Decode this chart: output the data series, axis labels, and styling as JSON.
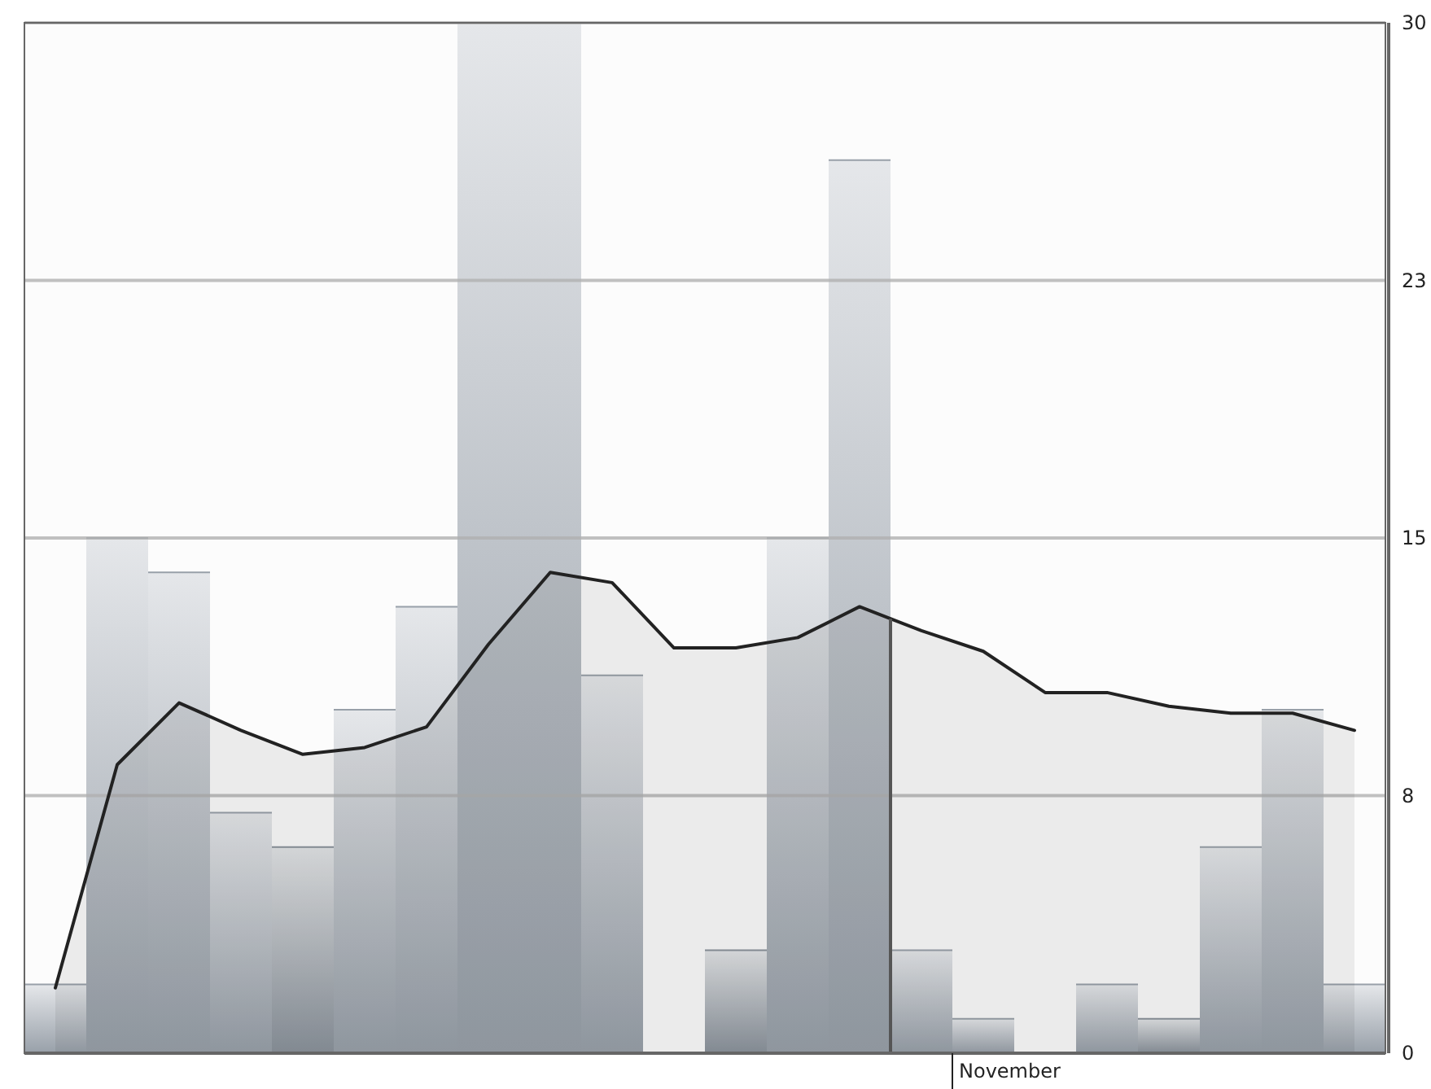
{
  "chart_data": {
    "type": "bar",
    "categories": [
      null,
      null,
      null,
      null,
      null,
      null,
      null,
      null,
      null,
      null,
      null,
      null,
      null,
      null,
      null,
      "November",
      null,
      null,
      null,
      null,
      null,
      null
    ],
    "series": [
      {
        "values": [
          2,
          15,
          14,
          7,
          6,
          10,
          13,
          30,
          30,
          11,
          0,
          3,
          15,
          26,
          3,
          1,
          0,
          2,
          1,
          6,
          10,
          2
        ],
        "colors": [
          "#98a0a9",
          "#98a0a9",
          "#98a0a9",
          "#98a0a9",
          "#8a929b",
          "#98a0a9",
          "#98a0a9",
          "#98a0a9",
          "#98a0a9",
          "#98a0a9",
          "#98a0a9",
          "#8a929b",
          "#98a0a9",
          "#98a0a9",
          "#98a0a9",
          "#98a0a9",
          "#98a0a9",
          "#98a0a9",
          "#8a929b",
          "#98a0a9",
          "#98a0a9",
          "#98a0a9"
        ]
      },
      {
        "type": "area",
        "color": "#222222",
        "values": [
          1.9,
          8.4,
          10.2,
          9.4,
          8.7,
          8.9,
          9.5,
          11.9,
          14.0,
          13.7,
          11.8,
          11.8,
          12.1,
          13.0,
          12.3,
          11.7,
          10.5,
          10.5,
          10.1,
          9.9,
          9.9,
          9.4
        ]
      }
    ],
    "ylim": [
      0,
      30
    ],
    "yticks": [
      0,
      {
        "value": 7.5,
        "label": "8"
      },
      15,
      {
        "value": 22.5,
        "label": "23"
      },
      30
    ],
    "grid": "y"
  }
}
